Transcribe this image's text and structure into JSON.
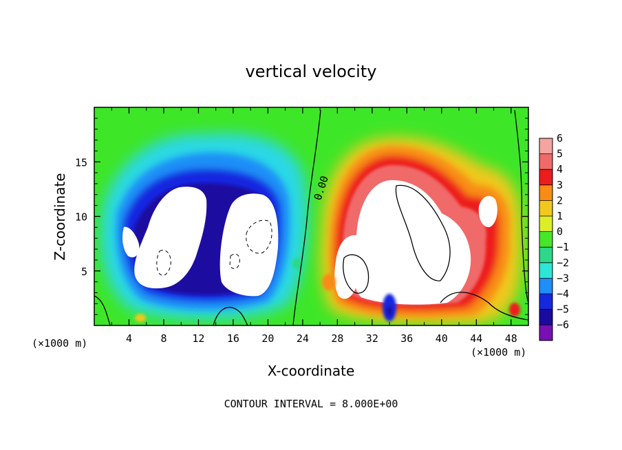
{
  "chart_data": {
    "type": "heatmap",
    "title": "vertical velocity",
    "xlabel": "X-coordinate",
    "ylabel": "Z-coordinate",
    "x_unit": "(×1000 m)",
    "z_unit": "(×1000 m)",
    "xlim": [
      0,
      50
    ],
    "ylim": [
      0,
      20
    ],
    "x_ticks": [
      4,
      8,
      12,
      16,
      20,
      24,
      28,
      32,
      36,
      40,
      44,
      48
    ],
    "y_ticks": [
      5,
      10,
      15
    ],
    "colorbar": {
      "min": -6,
      "max": 6,
      "labels": [
        "6",
        "5",
        "4",
        "3",
        "2",
        "1",
        "0",
        "−1",
        "−2",
        "−3",
        "−4",
        "−5",
        "−6"
      ],
      "colors": [
        "#f4a5a0",
        "#f06a6a",
        "#ee1c1c",
        "#f88c14",
        "#f2c81e",
        "#dcee28",
        "#46e628",
        "#2cd88a",
        "#2ce6d6",
        "#1e8ef8",
        "#1428e0",
        "#1a0aa0",
        "#7810b4"
      ]
    },
    "contour_label": "0.00",
    "footer": "CONTOUR INTERVAL = 8.000E+00"
  }
}
